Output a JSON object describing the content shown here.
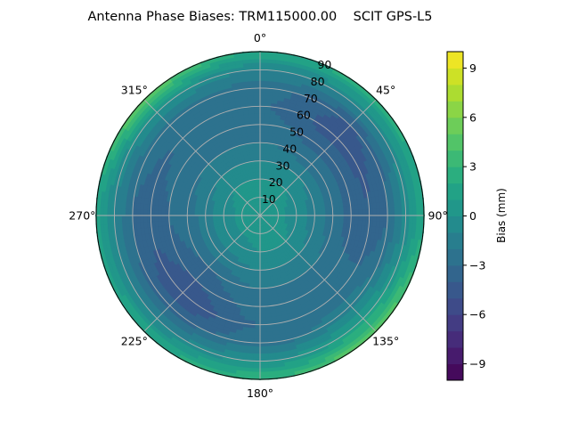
{
  "chart_data": {
    "type": "heatmap",
    "subtype": "polar-contour",
    "title": "Antenna Phase Biases: TRM115000.00    SCIT GPS-L5",
    "theta_direction": "clockwise",
    "theta_zero": "top",
    "angle_tick_labels": [
      "0°",
      "45°",
      "90°",
      "135°",
      "180°",
      "225°",
      "270°",
      "315°"
    ],
    "radial_ticks": [
      10,
      20,
      30,
      40,
      50,
      60,
      70,
      80,
      90
    ],
    "radial_tick_labels": [
      "10",
      "20",
      "30",
      "40",
      "50",
      "60",
      "70",
      "80",
      "90"
    ],
    "rlim": [
      0,
      90
    ],
    "grid": true,
    "colormap": "viridis",
    "colorbar": {
      "label": "Bias (mm)",
      "range": [
        -10,
        10
      ],
      "level_step": 1,
      "ticks": [
        -9,
        -6,
        -3,
        0,
        3,
        6,
        9
      ],
      "tick_labels": [
        "−9",
        "−6",
        "−3",
        "0",
        "3",
        "6",
        "9"
      ]
    },
    "azimuths": [
      0,
      45,
      90,
      135,
      180,
      225,
      270,
      315
    ],
    "zenith_samples": [
      0,
      10,
      20,
      30,
      40,
      50,
      60,
      70,
      80,
      90
    ],
    "values": [
      [
        0.5,
        0.3,
        0,
        -1,
        -2,
        -2.5,
        -3,
        -2.5,
        -1,
        2
      ],
      [
        0.5,
        0.3,
        0,
        -1,
        -2.5,
        -3.5,
        -4.5,
        -4,
        -1,
        2.5
      ],
      [
        0.5,
        0.3,
        -0.5,
        -1.5,
        -2.5,
        -3.5,
        -4,
        -3,
        -0.5,
        2
      ],
      [
        0.5,
        0.3,
        0,
        -1,
        -2,
        -2.5,
        -2.5,
        -1.5,
        1,
        5
      ],
      [
        0.5,
        0.3,
        0,
        -1,
        -2,
        -2.5,
        -3,
        -2.5,
        0,
        3
      ],
      [
        0.5,
        0.3,
        -0.5,
        -1.5,
        -3,
        -4,
        -5,
        -3.5,
        -1,
        2
      ],
      [
        0.5,
        0.3,
        -0.5,
        -1.5,
        -2.5,
        -3,
        -3.5,
        -3,
        -1,
        1.5
      ],
      [
        0.5,
        0.3,
        0,
        -1,
        -2,
        -2.5,
        -3,
        -2.5,
        0,
        5
      ]
    ]
  }
}
